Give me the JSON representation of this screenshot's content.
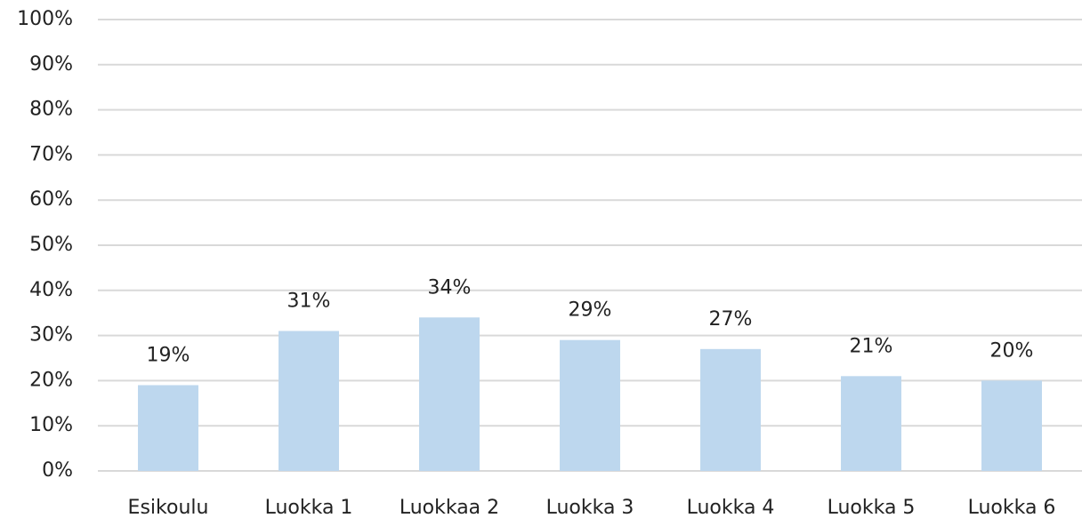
{
  "chart_data": {
    "type": "bar",
    "categories": [
      "Esikoulu",
      "Luokka 1",
      "Luokkaa 2",
      "Luokka 3",
      "Luokka 4",
      "Luokka 5",
      "Luokka 6"
    ],
    "values": [
      19,
      31,
      34,
      29,
      27,
      21,
      20
    ],
    "value_labels": [
      "19%",
      "31%",
      "34%",
      "29%",
      "27%",
      "21%",
      "20%"
    ],
    "color": "#bdd7ee",
    "ylim": [
      0,
      100
    ],
    "yticks": [
      {
        "value": 0,
        "label": "0%"
      },
      {
        "value": 10,
        "label": "10%"
      },
      {
        "value": 20,
        "label": "20%"
      },
      {
        "value": 30,
        "label": "30%"
      },
      {
        "value": 40,
        "label": "40%"
      },
      {
        "value": 50,
        "label": "50%"
      },
      {
        "value": 60,
        "label": "60%"
      },
      {
        "value": 70,
        "label": "70%"
      },
      {
        "value": 80,
        "label": "80%"
      },
      {
        "value": 90,
        "label": "90%"
      },
      {
        "value": 100,
        "label": "100%"
      }
    ],
    "grid": true
  }
}
